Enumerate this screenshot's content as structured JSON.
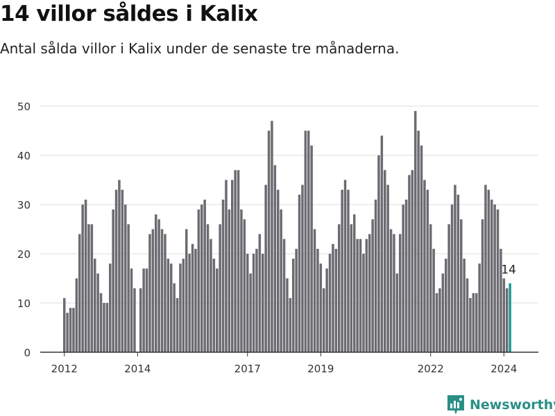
{
  "header": {
    "title": "14 villor såldes i Kalix",
    "subtitle": "Antal sålda villor i Kalix under de senaste tre månaderna."
  },
  "footer": {
    "brand": "Newsworthy"
  },
  "colors": {
    "bar": "#6c6b71",
    "highlight": "#1f9a8f",
    "grid": "#dddddd",
    "brand": "#2a8f86"
  },
  "chart_data": {
    "type": "bar",
    "title": "14 villor såldes i Kalix",
    "subtitle": "Antal sålda villor i Kalix under de senaste tre månaderna.",
    "xlabel": "",
    "ylabel": "",
    "ylim": [
      0,
      50
    ],
    "yticks": [
      0,
      10,
      20,
      30,
      40,
      50
    ],
    "xtick_labels": [
      {
        "label": "2012",
        "index": 0
      },
      {
        "label": "2014",
        "index": 24
      },
      {
        "label": "2017",
        "index": 60
      },
      {
        "label": "2019",
        "index": 84
      },
      {
        "label": "2022",
        "index": 120
      },
      {
        "label": "2024",
        "index": 144
      }
    ],
    "grid": true,
    "highlight_label": "14",
    "values": [
      11,
      8,
      9,
      9,
      15,
      24,
      30,
      31,
      26,
      26,
      19,
      16,
      12,
      10,
      10,
      18,
      29,
      33,
      35,
      33,
      30,
      26,
      17,
      13,
      0,
      13,
      17,
      17,
      24,
      25,
      28,
      27,
      25,
      24,
      19,
      18,
      14,
      11,
      18,
      19,
      25,
      20,
      22,
      21,
      29,
      30,
      31,
      26,
      23,
      19,
      17,
      26,
      31,
      35,
      29,
      35,
      37,
      37,
      29,
      27,
      20,
      16,
      20,
      21,
      24,
      20,
      34,
      45,
      47,
      38,
      33,
      29,
      23,
      15,
      11,
      19,
      21,
      32,
      34,
      45,
      45,
      42,
      25,
      21,
      18,
      13,
      17,
      20,
      22,
      21,
      26,
      33,
      35,
      33,
      26,
      28,
      23,
      23,
      20,
      23,
      24,
      27,
      31,
      40,
      44,
      37,
      34,
      25,
      24,
      16,
      24,
      30,
      31,
      36,
      37,
      49,
      45,
      42,
      35,
      33,
      26,
      21,
      12,
      13,
      16,
      19,
      26,
      30,
      34,
      32,
      27,
      19,
      15,
      11,
      12,
      12,
      18,
      27,
      34,
      33,
      31,
      30,
      29,
      21,
      15,
      13,
      14
    ]
  }
}
